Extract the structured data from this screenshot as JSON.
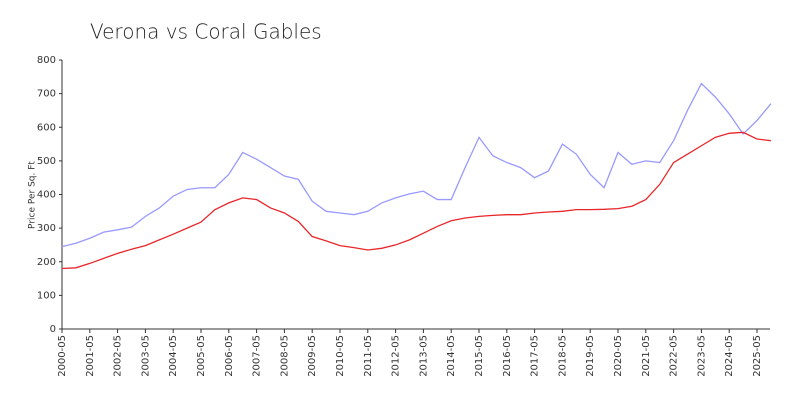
{
  "chart_data": {
    "type": "line",
    "title": "Verona vs Coral Gables",
    "y_label": "Price Per Sq. Ft",
    "categories": [
      "2000-05",
      null,
      "2001-05",
      null,
      "2002-05",
      null,
      "2003-05",
      null,
      "2004-05",
      null,
      "2005-05",
      null,
      "2006-05",
      null,
      "2007-05",
      null,
      "2008-05",
      null,
      "2009-05",
      null,
      "2010-05",
      null,
      "2011-05",
      null,
      "2012-05",
      null,
      "2013-05",
      null,
      "2014-05",
      null,
      "2015-05",
      null,
      "2016-05",
      null,
      "2017-05",
      null,
      "2018-05",
      null,
      "2019-05",
      null,
      "2020-05",
      null,
      "2021-05",
      null,
      "2022-05",
      null,
      "2023-05",
      null,
      "2024-05",
      null,
      "2025-05",
      null
    ],
    "series": [
      {
        "color": "#9999ff",
        "values": [
          245,
          255,
          270,
          288,
          295,
          303,
          335,
          360,
          395,
          415,
          420,
          420,
          460,
          525,
          505,
          480,
          455,
          445,
          380,
          350,
          345,
          340,
          350,
          375,
          390,
          402,
          410,
          385,
          385,
          480,
          570,
          515,
          495,
          480,
          450,
          470,
          550,
          520,
          460,
          420,
          525,
          490,
          500,
          495,
          560,
          650,
          730,
          690,
          640,
          580,
          620,
          670
        ]
      },
      {
        "color": "#e8262a",
        "values": [
          180,
          182,
          195,
          210,
          225,
          237,
          248,
          265,
          282,
          300,
          318,
          355,
          375,
          390,
          385,
          360,
          345,
          320,
          275,
          262,
          248,
          242,
          235,
          240,
          250,
          265,
          285,
          305,
          322,
          330,
          335,
          338,
          340,
          340,
          345,
          348,
          350,
          355,
          355,
          356,
          358,
          365,
          385,
          430,
          495,
          520,
          545,
          570,
          582,
          585,
          565,
          560
        ]
      }
    ],
    "ylim": [
      0,
      800
    ],
    "yticks": [
      0,
      100,
      200,
      300,
      400,
      500,
      600,
      700,
      800
    ]
  }
}
